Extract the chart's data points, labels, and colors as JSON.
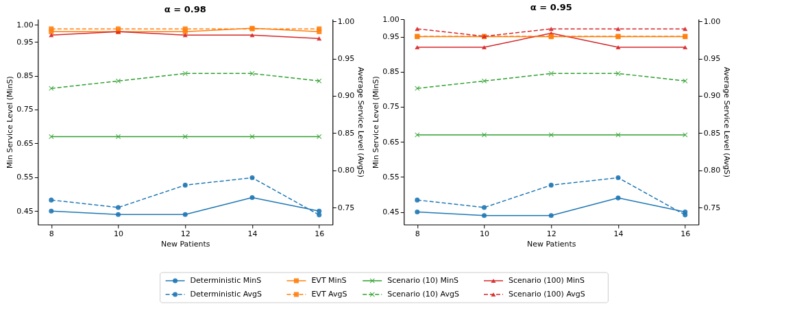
{
  "chart_data": [
    {
      "type": "line",
      "title": "α = 0.98",
      "xlabel": "New Patients",
      "ylabel": "Min Service Level (MinS)",
      "y2label": "Average Service Level (AvgS)",
      "x": [
        8,
        10,
        12,
        14,
        16
      ],
      "xlim": [
        7.6,
        16.4
      ],
      "xticks": [
        8,
        10,
        12,
        14,
        16
      ],
      "ylim": [
        0.41,
        1.017
      ],
      "yticks": [
        0.45,
        0.55,
        0.65,
        0.75,
        0.85,
        0.95,
        {
          "value": 1.0,
          "label": "1.00"
        }
      ],
      "y2lim": [
        0.727,
        1.003
      ],
      "y2ticks": [
        0.75,
        {
          "value": 0.8,
          "label": "0.80"
        },
        0.85,
        {
          "value": 0.9,
          "label": "0.90"
        },
        0.95,
        {
          "value": 1.0,
          "label": "1.00"
        }
      ],
      "grid": false,
      "legend": "bottom",
      "series": [
        {
          "name": "Deterministic MinS",
          "color": "#1f77b4",
          "marker": "circle",
          "line_style": "solid",
          "values": [
            0.45,
            0.44,
            0.44,
            0.49,
            0.45
          ]
        },
        {
          "name": "Deterministic AvgS",
          "color": "#1f77b4",
          "marker": "circle",
          "line_style": "dashed",
          "axis": "y2",
          "values": [
            0.76,
            0.75,
            0.78,
            0.79,
            0.74
          ]
        },
        {
          "name": "EVT MinS",
          "color": "#ff7f0e",
          "marker": "square",
          "line_style": "solid",
          "values": [
            0.98,
            0.98,
            0.98,
            0.99,
            0.98
          ]
        },
        {
          "name": "EVT AvgS",
          "color": "#ff7f0e",
          "marker": "square",
          "line_style": "dashed",
          "axis": "y2",
          "values": [
            0.99,
            0.99,
            0.99,
            0.99,
            0.99
          ]
        },
        {
          "name": "Scenario (10) MinS",
          "color": "#2ca02c",
          "marker": "cross",
          "line_style": "solid",
          "values": [
            0.67,
            0.67,
            0.67,
            0.67,
            0.67
          ]
        },
        {
          "name": "Scenario (10) AvgS",
          "color": "#2ca02c",
          "marker": "cross",
          "line_style": "dashed",
          "axis": "y2",
          "values": [
            0.91,
            0.92,
            0.93,
            0.93,
            0.92
          ]
        },
        {
          "name": "Scenario (100) MinS",
          "color": "#d62728",
          "marker": "triangle",
          "line_style": "solid",
          "values": [
            0.97,
            0.98,
            0.97,
            0.97,
            0.96
          ]
        }
      ]
    },
    {
      "type": "line",
      "title": "α = 0.95",
      "xlabel": "New Patients",
      "ylabel": "Min Service Level (MinS)",
      "y2label": "Average Service Level (AvgS)",
      "x": [
        8,
        10,
        12,
        14,
        16
      ],
      "xlim": [
        7.6,
        16.4
      ],
      "xticks": [
        8,
        10,
        12,
        14,
        16
      ],
      "ylim": [
        0.414,
        1.0
      ],
      "yticks": [
        0.45,
        0.55,
        0.65,
        0.75,
        0.85,
        0.95,
        {
          "value": 1.0,
          "label": "1.00"
        }
      ],
      "y2lim": [
        0.727,
        1.003
      ],
      "y2ticks": [
        0.75,
        {
          "value": 0.8,
          "label": "0.80"
        },
        0.85,
        {
          "value": 0.9,
          "label": "0.90"
        },
        0.95,
        {
          "value": 1.0,
          "label": "1.00"
        }
      ],
      "grid": false,
      "legend": "bottom",
      "series": [
        {
          "name": "Deterministic MinS",
          "color": "#1f77b4",
          "marker": "circle",
          "line_style": "solid",
          "values": [
            0.45,
            0.44,
            0.44,
            0.49,
            0.45
          ]
        },
        {
          "name": "Deterministic AvgS",
          "color": "#1f77b4",
          "marker": "circle",
          "line_style": "dashed",
          "axis": "y2",
          "values": [
            0.76,
            0.75,
            0.78,
            0.79,
            0.74
          ]
        },
        {
          "name": "EVT MinS",
          "color": "#ff7f0e",
          "marker": "square",
          "line_style": "solid",
          "values": [
            0.95,
            0.95,
            0.95,
            0.95,
            0.95
          ]
        },
        {
          "name": "EVT AvgS",
          "color": "#ff7f0e",
          "marker": "square",
          "line_style": "dashed",
          "axis": "y2",
          "values": [
            0.98,
            0.98,
            0.98,
            0.98,
            0.98
          ]
        },
        {
          "name": "Scenario (10) MinS",
          "color": "#2ca02c",
          "marker": "cross",
          "line_style": "solid",
          "values": [
            0.67,
            0.67,
            0.67,
            0.67,
            0.67
          ]
        },
        {
          "name": "Scenario (10) AvgS",
          "color": "#2ca02c",
          "marker": "cross",
          "line_style": "dashed",
          "axis": "y2",
          "values": [
            0.91,
            0.92,
            0.93,
            0.93,
            0.92
          ]
        },
        {
          "name": "Scenario (100) MinS",
          "color": "#d62728",
          "marker": "triangle",
          "line_style": "solid",
          "values": [
            0.92,
            0.92,
            0.96,
            0.92,
            0.92
          ]
        },
        {
          "name": "Scenario (100) AvgS",
          "color": "#d62728",
          "marker": "triangle",
          "line_style": "dashed",
          "axis": "y2",
          "values": [
            0.99,
            0.98,
            0.99,
            0.99,
            0.99
          ]
        }
      ]
    }
  ]
}
